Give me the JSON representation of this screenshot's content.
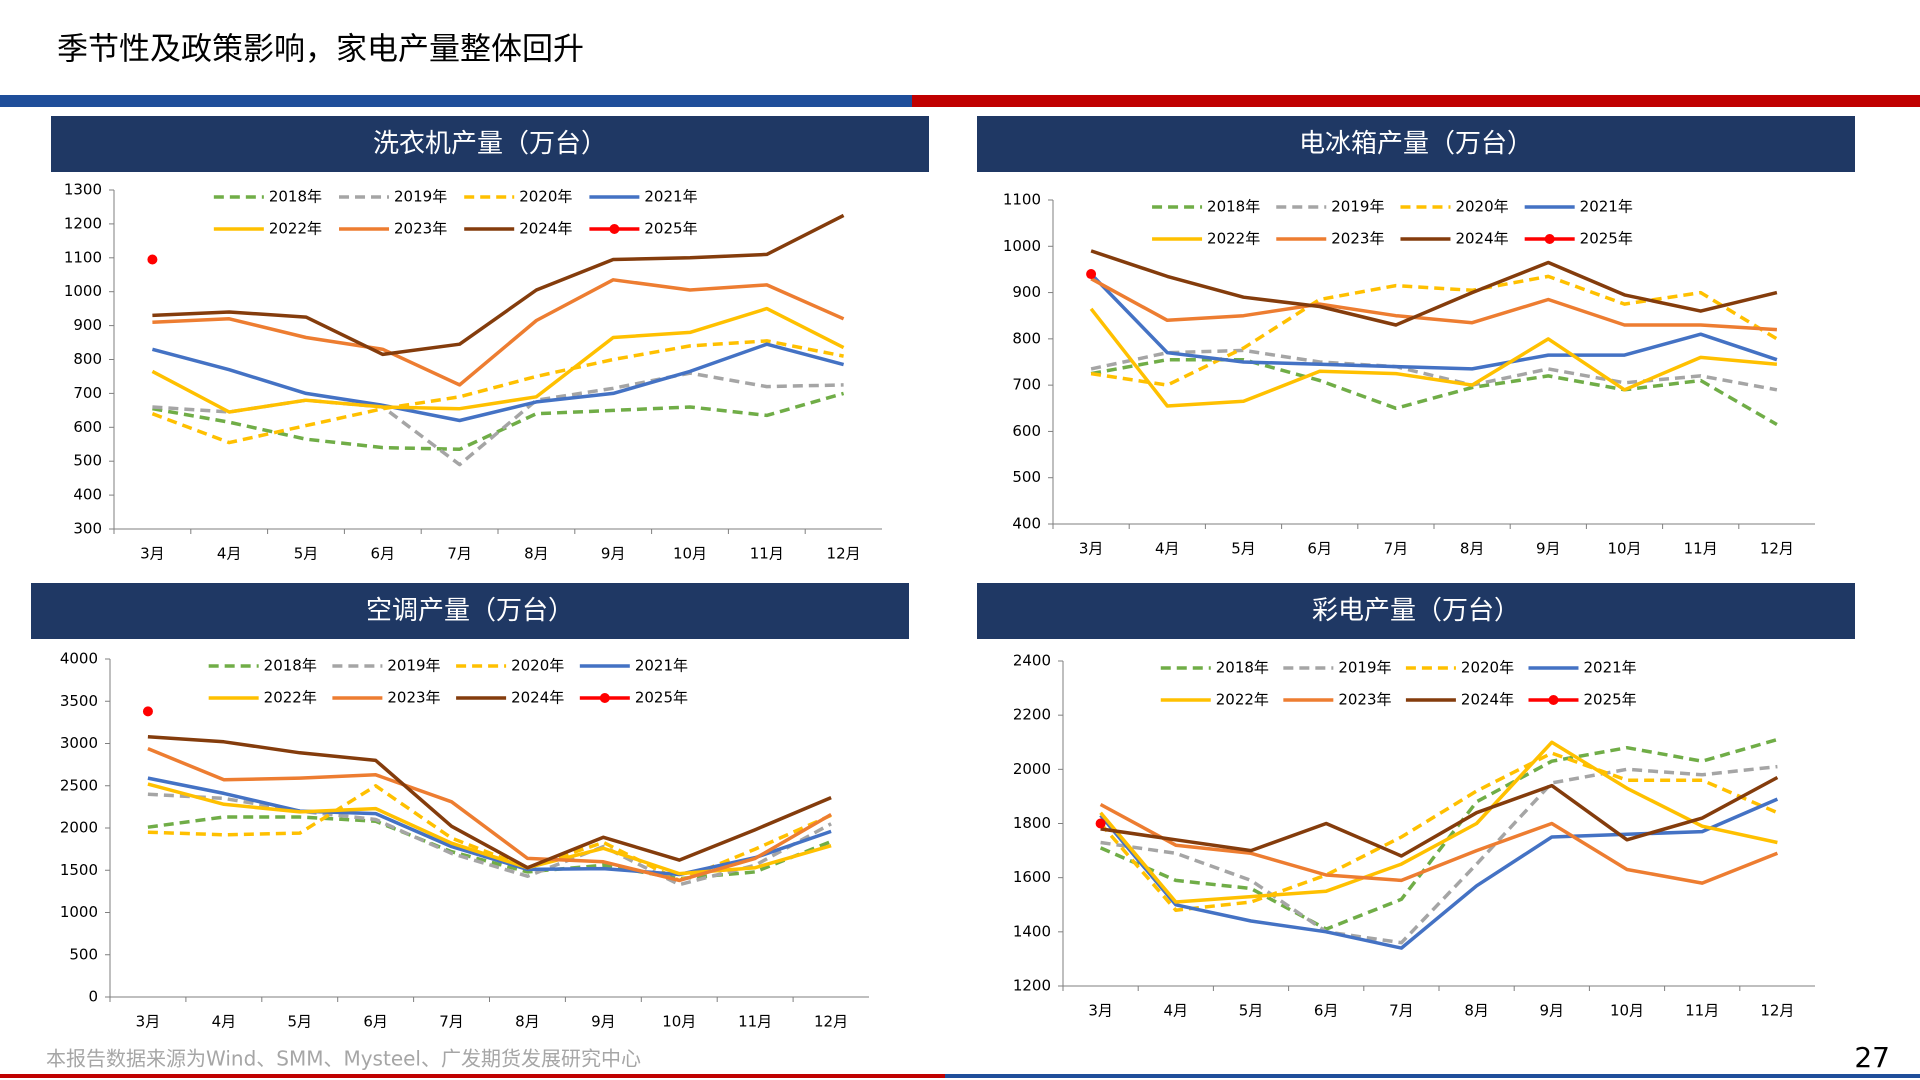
{
  "title": "季节性及政策影响，家电产量整体回升",
  "footer": "本报告数据来源为Wind、SMM、Mysteel、广发期货发展研究中心",
  "page_number": "27",
  "chart_data": [
    {
      "type": "line",
      "title": "洗衣机产量（万台）",
      "categories": [
        "3月",
        "4月",
        "5月",
        "6月",
        "7月",
        "8月",
        "9月",
        "10月",
        "11月",
        "12月"
      ],
      "ylim": [
        300,
        1300
      ],
      "yticks": [
        300,
        400,
        500,
        600,
        700,
        800,
        900,
        1000,
        1100,
        1200,
        1300
      ],
      "series": [
        {
          "name": "2018年",
          "color": "#70ad47",
          "dashed": true,
          "values": [
            655,
            615,
            565,
            540,
            535,
            640,
            650,
            660,
            635,
            700
          ]
        },
        {
          "name": "2019年",
          "color": "#a5a5a5",
          "dashed": true,
          "values": [
            660,
            645,
            680,
            660,
            490,
            680,
            715,
            760,
            720,
            725
          ]
        },
        {
          "name": "2020年",
          "color": "#ffc000",
          "dashed": true,
          "values": [
            640,
            555,
            605,
            655,
            690,
            750,
            800,
            840,
            855,
            810
          ]
        },
        {
          "name": "2021年",
          "color": "#4472c4",
          "dashed": false,
          "values": [
            830,
            770,
            700,
            665,
            620,
            675,
            700,
            765,
            845,
            785
          ]
        },
        {
          "name": "2022年",
          "color": "#ffc000",
          "dashed": false,
          "values": [
            765,
            645,
            680,
            660,
            655,
            690,
            865,
            880,
            950,
            835
          ]
        },
        {
          "name": "2023年",
          "color": "#ed7d31",
          "dashed": false,
          "values": [
            910,
            920,
            865,
            830,
            725,
            915,
            1035,
            1005,
            1020,
            920
          ]
        },
        {
          "name": "2024年",
          "color": "#843c0c",
          "dashed": false,
          "values": [
            930,
            940,
            925,
            815,
            845,
            1005,
            1095,
            1100,
            1110,
            1225
          ]
        },
        {
          "name": "2025年",
          "color": "#ff0000",
          "dashed": false,
          "marker": true,
          "values": [
            1095,
            null,
            null,
            null,
            null,
            null,
            null,
            null,
            null,
            null
          ]
        }
      ]
    },
    {
      "type": "line",
      "title": "电冰箱产量（万台）",
      "categories": [
        "3月",
        "4月",
        "5月",
        "6月",
        "7月",
        "8月",
        "9月",
        "10月",
        "11月",
        "12月"
      ],
      "ylim": [
        400,
        1100
      ],
      "yticks": [
        400,
        500,
        600,
        700,
        800,
        900,
        1000,
        1100
      ],
      "series": [
        {
          "name": "2018年",
          "color": "#70ad47",
          "dashed": true,
          "values": [
            725,
            755,
            755,
            710,
            650,
            695,
            720,
            690,
            710,
            615
          ]
        },
        {
          "name": "2019年",
          "color": "#a5a5a5",
          "dashed": true,
          "values": [
            735,
            770,
            775,
            750,
            740,
            700,
            735,
            705,
            720,
            690
          ]
        },
        {
          "name": "2020年",
          "color": "#ffc000",
          "dashed": true,
          "values": [
            725,
            700,
            780,
            885,
            915,
            905,
            935,
            875,
            900,
            800
          ]
        },
        {
          "name": "2021年",
          "color": "#4472c4",
          "dashed": false,
          "values": [
            940,
            770,
            750,
            745,
            740,
            735,
            765,
            765,
            810,
            755
          ]
        },
        {
          "name": "2022年",
          "color": "#ffc000",
          "dashed": false,
          "values": [
            865,
            655,
            665,
            730,
            725,
            700,
            800,
            690,
            760,
            745
          ]
        },
        {
          "name": "2023年",
          "color": "#ed7d31",
          "dashed": false,
          "values": [
            930,
            840,
            850,
            875,
            850,
            835,
            885,
            830,
            830,
            820
          ]
        },
        {
          "name": "2024年",
          "color": "#843c0c",
          "dashed": false,
          "values": [
            990,
            935,
            890,
            870,
            830,
            900,
            965,
            895,
            860,
            900
          ]
        },
        {
          "name": "2025年",
          "color": "#ff0000",
          "dashed": false,
          "marker": true,
          "values": [
            940,
            null,
            null,
            null,
            null,
            null,
            null,
            null,
            null,
            null
          ]
        }
      ]
    },
    {
      "type": "line",
      "title": "空调产量（万台）",
      "categories": [
        "3月",
        "4月",
        "5月",
        "6月",
        "7月",
        "8月",
        "9月",
        "10月",
        "11月",
        "12月"
      ],
      "ylim": [
        0,
        4000
      ],
      "yticks": [
        0,
        500,
        1000,
        1500,
        2000,
        2500,
        3000,
        3500,
        4000
      ],
      "series": [
        {
          "name": "2018年",
          "color": "#70ad47",
          "dashed": true,
          "values": [
            2010,
            2130,
            2130,
            2080,
            1720,
            1480,
            1560,
            1400,
            1480,
            1840
          ]
        },
        {
          "name": "2019年",
          "color": "#a5a5a5",
          "dashed": true,
          "values": [
            2400,
            2350,
            2200,
            2100,
            1700,
            1430,
            1780,
            1330,
            1560,
            2050
          ]
        },
        {
          "name": "2020年",
          "color": "#ffc000",
          "dashed": true,
          "values": [
            1950,
            1920,
            1940,
            2500,
            1880,
            1530,
            1830,
            1380,
            1750,
            2150
          ]
        },
        {
          "name": "2021年",
          "color": "#4472c4",
          "dashed": false,
          "values": [
            2590,
            2410,
            2200,
            2170,
            1780,
            1510,
            1520,
            1450,
            1650,
            1960
          ]
        },
        {
          "name": "2022年",
          "color": "#ffc000",
          "dashed": false,
          "values": [
            2520,
            2280,
            2190,
            2230,
            1820,
            1530,
            1760,
            1460,
            1530,
            1790
          ]
        },
        {
          "name": "2023年",
          "color": "#ed7d31",
          "dashed": false,
          "values": [
            2940,
            2570,
            2590,
            2630,
            2310,
            1640,
            1600,
            1380,
            1640,
            2160
          ]
        },
        {
          "name": "2024年",
          "color": "#843c0c",
          "dashed": false,
          "values": [
            3080,
            3020,
            2890,
            2800,
            2020,
            1530,
            1890,
            1620,
            1980,
            2360
          ]
        },
        {
          "name": "2025年",
          "color": "#ff0000",
          "dashed": false,
          "marker": true,
          "values": [
            3380,
            null,
            null,
            null,
            null,
            null,
            null,
            null,
            null,
            null
          ]
        }
      ]
    },
    {
      "type": "line",
      "title": "彩电产量（万台）",
      "categories": [
        "3月",
        "4月",
        "5月",
        "6月",
        "7月",
        "8月",
        "9月",
        "10月",
        "11月",
        "12月"
      ],
      "ylim": [
        1200,
        2400
      ],
      "yticks": [
        1200,
        1400,
        1600,
        1800,
        2000,
        2200,
        2400
      ],
      "series": [
        {
          "name": "2018年",
          "color": "#70ad47",
          "dashed": true,
          "values": [
            1710,
            1590,
            1560,
            1410,
            1520,
            1880,
            2030,
            2080,
            2030,
            2110
          ]
        },
        {
          "name": "2019年",
          "color": "#a5a5a5",
          "dashed": true,
          "values": [
            1730,
            1690,
            1590,
            1400,
            1360,
            1650,
            1950,
            2000,
            1980,
            2010
          ]
        },
        {
          "name": "2020年",
          "color": "#ffc000",
          "dashed": true,
          "values": [
            1800,
            1480,
            1510,
            1610,
            1750,
            1920,
            2060,
            1960,
            1960,
            1840
          ]
        },
        {
          "name": "2021年",
          "color": "#4472c4",
          "dashed": false,
          "values": [
            1830,
            1500,
            1440,
            1400,
            1340,
            1570,
            1750,
            1760,
            1770,
            1890
          ]
        },
        {
          "name": "2022年",
          "color": "#ffc000",
          "dashed": false,
          "values": [
            1840,
            1510,
            1530,
            1550,
            1650,
            1800,
            2100,
            1930,
            1790,
            1730
          ]
        },
        {
          "name": "2023年",
          "color": "#ed7d31",
          "dashed": false,
          "values": [
            1870,
            1720,
            1690,
            1610,
            1590,
            1700,
            1800,
            1630,
            1580,
            1690
          ]
        },
        {
          "name": "2024年",
          "color": "#843c0c",
          "dashed": false,
          "values": [
            1780,
            1740,
            1700,
            1800,
            1680,
            1840,
            1940,
            1740,
            1820,
            1970
          ]
        },
        {
          "name": "2025年",
          "color": "#ff0000",
          "dashed": false,
          "marker": true,
          "values": [
            1800,
            null,
            null,
            null,
            null,
            null,
            null,
            null,
            null,
            null
          ]
        }
      ]
    }
  ]
}
